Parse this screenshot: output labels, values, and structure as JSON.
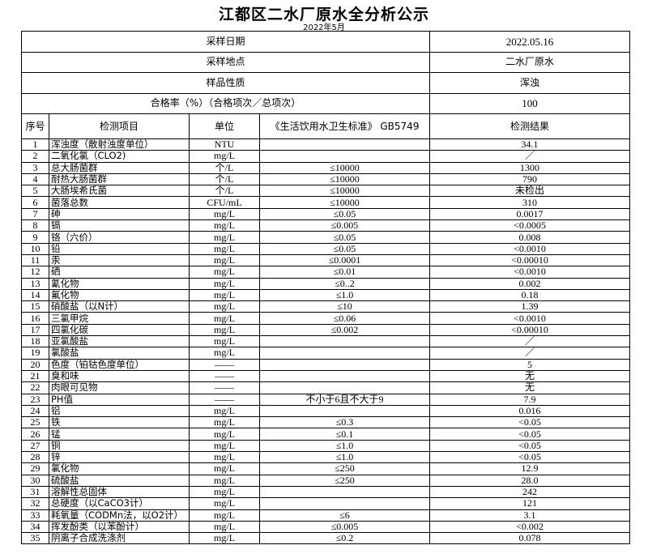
{
  "title": "江都区二水厂原水全分析公示",
  "subtitle": "2022年5月",
  "info": [
    {
      "label": "采样日期",
      "value": "2022.05.16"
    },
    {
      "label": "采样地点",
      "value": "二水厂原水"
    },
    {
      "label": "样品性质",
      "value": "浑浊"
    },
    {
      "label": "合格率（%）（合格项次／总项次）",
      "value": "100"
    }
  ],
  "columns": [
    "序号",
    "检测项目",
    "单位",
    "《生活饮用水卫生标准》 GB5749",
    "检测结果"
  ],
  "rows": [
    [
      "1",
      "浑浊度（散射浊度单位）",
      "NTU",
      "",
      "34.1"
    ],
    [
      "2",
      "二氧化氯（CLO2)",
      "mg/L",
      "",
      "／"
    ],
    [
      "3",
      "总大肠菌群",
      "个/L",
      "≤10000",
      "1300"
    ],
    [
      "4",
      "耐热大肠菌群",
      "个/L",
      "≤10000",
      "790"
    ],
    [
      "5",
      "大肠埃希氏菌",
      "个/L",
      "≤10000",
      "未检出"
    ],
    [
      "6",
      "菌落总数",
      "CFU/mL",
      "≤10000",
      "310"
    ],
    [
      "7",
      "砷",
      "mg/L",
      "≤0.05",
      "0.0017"
    ],
    [
      "8",
      "镉",
      "mg/L",
      "≤0.005",
      "<0.0005"
    ],
    [
      "9",
      "铬（六价）",
      "mg/L",
      "≤0.05",
      "0.008"
    ],
    [
      "10",
      "铅",
      "mg/L",
      "≤0.05",
      "<0.0010"
    ],
    [
      "11",
      "汞",
      "mg/L",
      "≤0.0001",
      "<0.00010"
    ],
    [
      "12",
      "硒",
      "mg/L",
      "≤0.01",
      "<0.0010"
    ],
    [
      "13",
      "氰化物",
      "mg/L",
      "≤0..2",
      "0.002"
    ],
    [
      "14",
      "氟化物",
      "mg/L",
      "≤1.0",
      "0.18"
    ],
    [
      "15",
      "硝酸盐（以N计）",
      "mg/L",
      "≤10",
      "1.39"
    ],
    [
      "16",
      "三氯甲烷",
      "mg/L",
      "≤0.06",
      "<0.0010"
    ],
    [
      "17",
      "四氯化碳",
      "mg/L",
      "≤0.002",
      "<0.00010"
    ],
    [
      "18",
      "亚氯酸盐",
      "mg/L",
      "",
      "／"
    ],
    [
      "19",
      "氯酸盐",
      "mg/L",
      "",
      "／"
    ],
    [
      "20",
      "色度（铂钴色度单位）",
      "——",
      "",
      "5"
    ],
    [
      "21",
      "臭和味",
      "——",
      "",
      "无"
    ],
    [
      "22",
      "肉眼可见物",
      "——",
      "",
      "无"
    ],
    [
      "23",
      "PH值",
      "——",
      "不小于6且不大于9",
      "7.9"
    ],
    [
      "24",
      "铝",
      "mg/L",
      "",
      "0.016"
    ],
    [
      "25",
      "铁",
      "mg/L",
      "≤0.3",
      "<0.05"
    ],
    [
      "26",
      "锰",
      "mg/L",
      "≤0.1",
      "<0.05"
    ],
    [
      "27",
      "铜",
      "mg/L",
      "≤1.0",
      "<0.05"
    ],
    [
      "28",
      "锌",
      "mg/L",
      "≤1.0",
      "<0.05"
    ],
    [
      "29",
      "氯化物",
      "mg/L",
      "≤250",
      "12.9"
    ],
    [
      "30",
      "硫酸盐",
      "mg/L",
      "≤250",
      "28.0"
    ],
    [
      "31",
      "溶解性总固体",
      "mg/L",
      "",
      "242"
    ],
    [
      "32",
      "总硬度（以CaCO3计）",
      "mg/L",
      "",
      "121"
    ],
    [
      "33",
      "耗氧量（CODMn法，以O2计）",
      "mg/L",
      "≤6",
      "3.1"
    ],
    [
      "34",
      "挥发酚类（以苯酚计）",
      "mg/L",
      "≤0.005",
      "<0.002"
    ],
    [
      "35",
      "阴离子合成洗涤剂",
      "mg/L",
      "≤0.2",
      "0.078"
    ]
  ]
}
